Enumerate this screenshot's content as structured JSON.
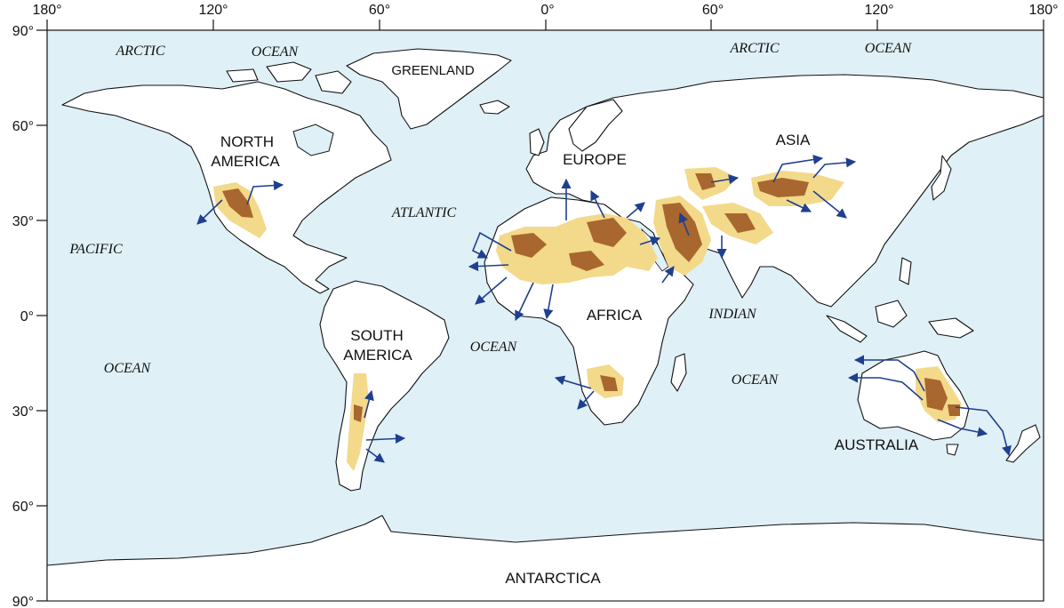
{
  "map": {
    "top_ticks": [
      "180°",
      "120°",
      "60°",
      "0°",
      "60°",
      "120°",
      "180°"
    ],
    "left_ticks": [
      "90°",
      "60°",
      "30°",
      "0°",
      "30°",
      "60°",
      "90°"
    ],
    "continents": {
      "north_america_1": "NORTH",
      "north_america_2": "AMERICA",
      "south_america_1": "SOUTH",
      "south_america_2": "AMERICA",
      "greenland": "GREENLAND",
      "europe": "EUROPE",
      "asia": "ASIA",
      "africa": "AFRICA",
      "australia": "AUSTRALIA",
      "antarctica": "ANTARCTICA"
    },
    "oceans": {
      "arctic_w": "ARCTIC",
      "ocean_nw": "OCEAN",
      "arctic_e": "ARCTIC",
      "ocean_ne": "OCEAN",
      "atlantic": "ATLANTIC",
      "ocean_atl": "OCEAN",
      "pacific": "PACIFIC",
      "ocean_pac": "OCEAN",
      "indian": "INDIAN",
      "ocean_ind": "OCEAN"
    },
    "colors": {
      "ocean": "#dff0f6",
      "land": "#ffffff",
      "dust_light": "#f3d98a",
      "dust_dark": "#a8672f",
      "arrow": "#1f3f8f"
    }
  }
}
